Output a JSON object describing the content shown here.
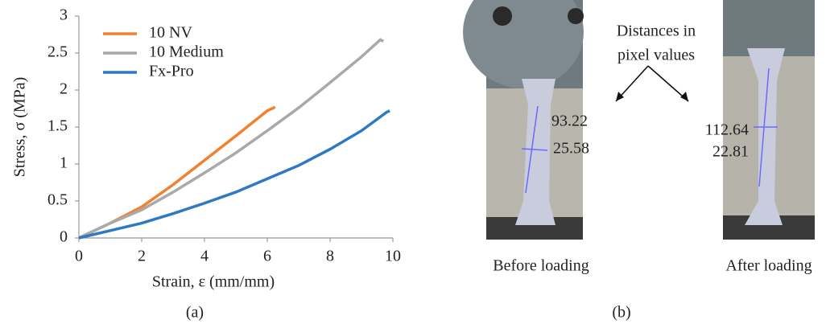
{
  "chart_data": {
    "type": "line",
    "x_label": "Strain, ε (mm/mm)",
    "y_label": "Stress, σ (MPa)",
    "caption": "(a)",
    "xlim": [
      0,
      10
    ],
    "xticks": [
      0,
      2,
      4,
      6,
      8,
      10
    ],
    "ylim": [
      0,
      3
    ],
    "yticks": [
      0,
      0.5,
      1,
      1.5,
      2,
      2.5,
      3
    ],
    "legend": "upper left",
    "grid": false,
    "series": [
      {
        "name": "10 NV",
        "color": "#f28030",
        "x": [
          0,
          1,
          2,
          3,
          4,
          5,
          6,
          6.25
        ],
        "values": [
          0,
          0.2,
          0.42,
          0.72,
          1.05,
          1.38,
          1.72,
          1.77
        ]
      },
      {
        "name": "10 Medium",
        "color": "#a9a9a9",
        "x": [
          0,
          1,
          2,
          3,
          4,
          5,
          6,
          7,
          8,
          9,
          9.6,
          9.7
        ],
        "values": [
          0,
          0.2,
          0.38,
          0.62,
          0.88,
          1.15,
          1.45,
          1.76,
          2.1,
          2.45,
          2.68,
          2.66
        ]
      },
      {
        "name": "Fx-Pro",
        "color": "#2f78c4",
        "x": [
          0,
          1,
          2,
          3,
          4,
          5,
          6,
          7,
          8,
          9,
          9.8,
          9.9
        ],
        "values": [
          0,
          0.1,
          0.2,
          0.33,
          0.47,
          0.62,
          0.8,
          0.98,
          1.2,
          1.45,
          1.7,
          1.72
        ]
      }
    ]
  },
  "panel_b": {
    "note": [
      "Distances in",
      "pixel values"
    ],
    "before": {
      "length": "93.22",
      "width": "25.58",
      "label": "Before loading"
    },
    "after": {
      "length": "112.64",
      "width": "22.81",
      "label": "After loading"
    },
    "caption": "(b)"
  }
}
